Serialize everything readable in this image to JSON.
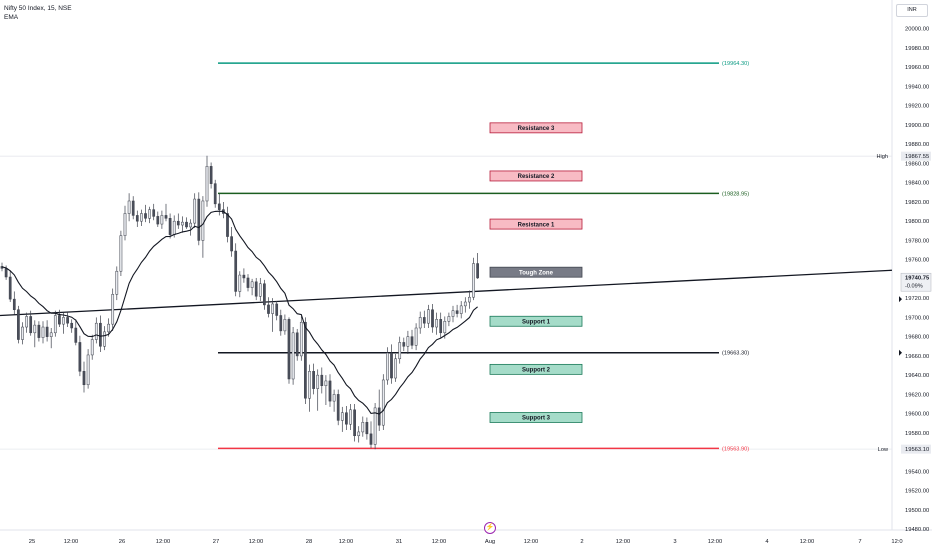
{
  "legend": {
    "symbol_line": "Nifty 50 Index, 15, NSE",
    "indicator": "EMA"
  },
  "currency": "INR",
  "chart_data": {
    "type": "candlestick",
    "y_ticks": [
      "20000.00",
      "19980.00",
      "19960.00",
      "19940.00",
      "19920.00",
      "19900.00",
      "19880.00",
      "19860.00",
      "19840.00",
      "19820.00",
      "19800.00",
      "19780.00",
      "19760.00",
      "19720.00",
      "19700.00",
      "19680.00",
      "19660.00",
      "19640.00",
      "19620.00",
      "19600.00",
      "19580.00",
      "19540.00",
      "19520.00",
      "19500.00",
      "19480.00"
    ],
    "ylim": [
      19477,
      20007
    ],
    "x_ticks": [
      "25",
      "12:00",
      "26",
      "12:00",
      "27",
      "12:00",
      "28",
      "12:00",
      "31",
      "12:00",
      "Aug",
      "12:00",
      "2",
      "12:00",
      "3",
      "12:00",
      "4",
      "12:00",
      "7",
      "12:0"
    ],
    "high_label": "High",
    "high_value": "19867.55",
    "low_label": "Low",
    "low_value": "19563.10",
    "last_price": "19740.75",
    "last_change": "-0.09%",
    "levels": [
      {
        "label": "(19964.30)",
        "value": 19964.3,
        "color": "#089981"
      },
      {
        "label": "(19828.95)",
        "value": 19828.95,
        "color": "#1b5e20"
      },
      {
        "label": "(19663.30)",
        "value": 19663.3,
        "color": "#131722"
      },
      {
        "label": "(19563.90)",
        "value": 19563.9,
        "color": "#f23645"
      }
    ],
    "zones": [
      {
        "label": "Resistance 3",
        "value": 19897,
        "kind": "resistance"
      },
      {
        "label": "Resistance 2",
        "value": 19847,
        "kind": "resistance"
      },
      {
        "label": "Resistance 1",
        "value": 19797,
        "kind": "resistance"
      },
      {
        "label": "Tough Zone",
        "value": 19747,
        "kind": "neutral"
      },
      {
        "label": "Support 1",
        "value": 19696,
        "kind": "support"
      },
      {
        "label": "Support 2",
        "value": 19646,
        "kind": "support"
      },
      {
        "label": "Support 3",
        "value": 19596,
        "kind": "support"
      }
    ],
    "trendline": {
      "from": 19702,
      "to": 19749
    },
    "candles": [
      [
        19753,
        19757,
        19748,
        19751
      ],
      [
        19751,
        19754,
        19739,
        19742
      ],
      [
        19742,
        19749,
        19716,
        19719
      ],
      [
        19719,
        19727,
        19703,
        19708
      ],
      [
        19708,
        19712,
        19673,
        19677
      ],
      [
        19677,
        19695,
        19672,
        19690
      ],
      [
        19690,
        19705,
        19684,
        19701
      ],
      [
        19701,
        19707,
        19681,
        19684
      ],
      [
        19684,
        19697,
        19669,
        19692
      ],
      [
        19692,
        19696,
        19675,
        19679
      ],
      [
        19679,
        19696,
        19673,
        19690
      ],
      [
        19690,
        19697,
        19675,
        19680
      ],
      [
        19680,
        19689,
        19668,
        19684
      ],
      [
        19684,
        19707,
        19680,
        19702
      ],
      [
        19702,
        19708,
        19690,
        19693
      ],
      [
        19693,
        19705,
        19683,
        19700
      ],
      [
        19700,
        19705,
        19690,
        19694
      ],
      [
        19694,
        19698,
        19684,
        19689
      ],
      [
        19689,
        19698,
        19671,
        19674
      ],
      [
        19674,
        19681,
        19639,
        19644
      ],
      [
        19644,
        19654,
        19622,
        19630
      ],
      [
        19630,
        19667,
        19626,
        19661
      ],
      [
        19661,
        19682,
        19656,
        19677
      ],
      [
        19677,
        19700,
        19673,
        19694
      ],
      [
        19694,
        19702,
        19664,
        19670
      ],
      [
        19670,
        19691,
        19666,
        19685
      ],
      [
        19685,
        19699,
        19680,
        19693
      ],
      [
        19693,
        19730,
        19686,
        19724
      ],
      [
        19724,
        19753,
        19718,
        19748
      ],
      [
        19748,
        19790,
        19743,
        19785
      ],
      [
        19785,
        19816,
        19780,
        19808
      ],
      [
        19808,
        19829,
        19800,
        19821
      ],
      [
        19821,
        19826,
        19802,
        19806
      ],
      [
        19806,
        19811,
        19794,
        19800
      ],
      [
        19800,
        19812,
        19795,
        19808
      ],
      [
        19808,
        19817,
        19799,
        19803
      ],
      [
        19803,
        19815,
        19798,
        19812
      ],
      [
        19812,
        19818,
        19801,
        19805
      ],
      [
        19805,
        19810,
        19794,
        19797
      ],
      [
        19797,
        19811,
        19792,
        19806
      ],
      [
        19806,
        19818,
        19800,
        19803
      ],
      [
        19803,
        19808,
        19782,
        19786
      ],
      [
        19786,
        19806,
        19783,
        19800
      ],
      [
        19800,
        19808,
        19792,
        19796
      ],
      [
        19796,
        19805,
        19788,
        19799
      ],
      [
        19799,
        19804,
        19792,
        19794
      ],
      [
        19794,
        19802,
        19785,
        19798
      ],
      [
        19798,
        19829,
        19793,
        19823
      ],
      [
        19823,
        19830,
        19775,
        19780
      ],
      [
        19780,
        19826,
        19762,
        19821
      ],
      [
        19821,
        19868,
        19815,
        19857
      ],
      [
        19857,
        19861,
        19834,
        19839
      ],
      [
        19839,
        19843,
        19814,
        19818
      ],
      [
        19818,
        19829,
        19806,
        19812
      ],
      [
        19812,
        19820,
        19803,
        19808
      ],
      [
        19808,
        19815,
        19778,
        19784
      ],
      [
        19784,
        19794,
        19763,
        19769
      ],
      [
        19769,
        19777,
        19722,
        19727
      ],
      [
        19727,
        19748,
        19721,
        19744
      ],
      [
        19744,
        19751,
        19736,
        19741
      ],
      [
        19741,
        19745,
        19727,
        19731
      ],
      [
        19731,
        19740,
        19723,
        19737
      ],
      [
        19737,
        19741,
        19718,
        19722
      ],
      [
        19722,
        19741,
        19717,
        19735
      ],
      [
        19735,
        19739,
        19708,
        19713
      ],
      [
        19713,
        19721,
        19700,
        19704
      ],
      [
        19704,
        19720,
        19685,
        19714
      ],
      [
        19714,
        19717,
        19697,
        19702
      ],
      [
        19702,
        19708,
        19681,
        19686
      ],
      [
        19686,
        19703,
        19682,
        19698
      ],
      [
        19698,
        19700,
        19631,
        19636
      ],
      [
        19636,
        19690,
        19630,
        19684
      ],
      [
        19684,
        19688,
        19655,
        19660
      ],
      [
        19660,
        19701,
        19655,
        19695
      ],
      [
        19695,
        19700,
        19610,
        19616
      ],
      [
        19616,
        19651,
        19602,
        19644
      ],
      [
        19644,
        19652,
        19620,
        19626
      ],
      [
        19626,
        19646,
        19603,
        19640
      ],
      [
        19640,
        19648,
        19621,
        19629
      ],
      [
        19629,
        19640,
        19609,
        19634
      ],
      [
        19634,
        19641,
        19607,
        19613
      ],
      [
        19613,
        19625,
        19602,
        19620
      ],
      [
        19620,
        19625,
        19588,
        19593
      ],
      [
        19593,
        19607,
        19581,
        19601
      ],
      [
        19601,
        19608,
        19583,
        19589
      ],
      [
        19589,
        19610,
        19583,
        19604
      ],
      [
        19604,
        19610,
        19571,
        19577
      ],
      [
        19577,
        19587,
        19570,
        19581
      ],
      [
        19581,
        19597,
        19576,
        19591
      ],
      [
        19591,
        19596,
        19573,
        19579
      ],
      [
        19579,
        19592,
        19564,
        19568
      ],
      [
        19568,
        19611,
        19563,
        19606
      ],
      [
        19606,
        19625,
        19582,
        19588
      ],
      [
        19588,
        19641,
        19583,
        19635
      ],
      [
        19635,
        19669,
        19630,
        19663
      ],
      [
        19663,
        19672,
        19631,
        19637
      ],
      [
        19637,
        19662,
        19633,
        19657
      ],
      [
        19657,
        19680,
        19652,
        19674
      ],
      [
        19674,
        19679,
        19665,
        19670
      ],
      [
        19670,
        19686,
        19662,
        19680
      ],
      [
        19680,
        19687,
        19667,
        19671
      ],
      [
        19671,
        19694,
        19666,
        19689
      ],
      [
        19689,
        19706,
        19683,
        19700
      ],
      [
        19700,
        19707,
        19689,
        19694
      ],
      [
        19694,
        19713,
        19689,
        19708
      ],
      [
        19708,
        19714,
        19684,
        19690
      ],
      [
        19690,
        19705,
        19682,
        19698
      ],
      [
        19698,
        19705,
        19678,
        19684
      ],
      [
        19684,
        19701,
        19678,
        19696
      ],
      [
        19696,
        19705,
        19691,
        19701
      ],
      [
        19701,
        19712,
        19695,
        19707
      ],
      [
        19707,
        19713,
        19700,
        19704
      ],
      [
        19704,
        19717,
        19699,
        19712
      ],
      [
        19712,
        19721,
        19705,
        19716
      ],
      [
        19716,
        19728,
        19709,
        19721
      ],
      [
        19721,
        19762,
        19718,
        19756
      ],
      [
        19756,
        19767,
        19740,
        19741
      ]
    ],
    "ema": [
      19752.5,
      19751.5,
      19748.4,
      19744.2,
      19736.5,
      19730.3,
      19726.8,
      19722.3,
      19719.2,
      19714.6,
      19711.2,
      19707.0,
      19704.4,
      19704.3,
      19702.9,
      19702.5,
      19701.5,
      19700.2,
      19697.1,
      19690.3,
      19683.1,
      19680.4,
      19680.1,
      19681.8,
      19680.5,
      19681.0,
      19682.4,
      19687.6,
      19695.4,
      19707.2,
      19721.2,
      19735.3,
      19744.0,
      19750.2,
      19757.2,
      19762.4,
      19768.9,
      19773.9,
      19777.4,
      19781.2,
      19784.0,
      19784.2,
      19786.2,
      19787.3,
      19788.9,
      19789.6,
      19790.7,
      19794.8,
      19793.3,
      19796.9,
      19804.8,
      19809.1,
      19810.2,
      19810.4,
      19810.1,
      19807.0,
      19802.3,
      19791.6,
      19784.8,
      19779.0,
      19772.7,
      19768.4,
      19762.5,
      19759.1,
      19753.6,
      19747.1,
      19742.6,
      19737.1,
      19730.2,
      19725.1,
      19712.7,
      19709.1,
      19703.9,
      19702.9,
      19689.6,
      19684.6,
      19677.4,
      19672.3,
      19666.2,
      19661.5,
      19654.7,
      19650.4,
      19642.6,
      19636.7,
      19629.9,
      19625.9,
      19618.3,
      19613.7,
      19610.8,
      19606.6,
      19600.3,
      19600.9,
      19599.6,
      19603.2,
      19611.4,
      19614.8,
      19620.1,
      19626.9,
      19632.2,
      19638.4,
      19642.8,
      19649.3,
      19656.8,
      19661.9,
      19668.6,
      19672.1,
      19676.7,
      19678.5,
      19681.2,
      19683.9,
      19687.4,
      19689.6,
      19692.8,
      19696.2,
      19699.8,
      19707.5,
      19711.0
    ]
  }
}
